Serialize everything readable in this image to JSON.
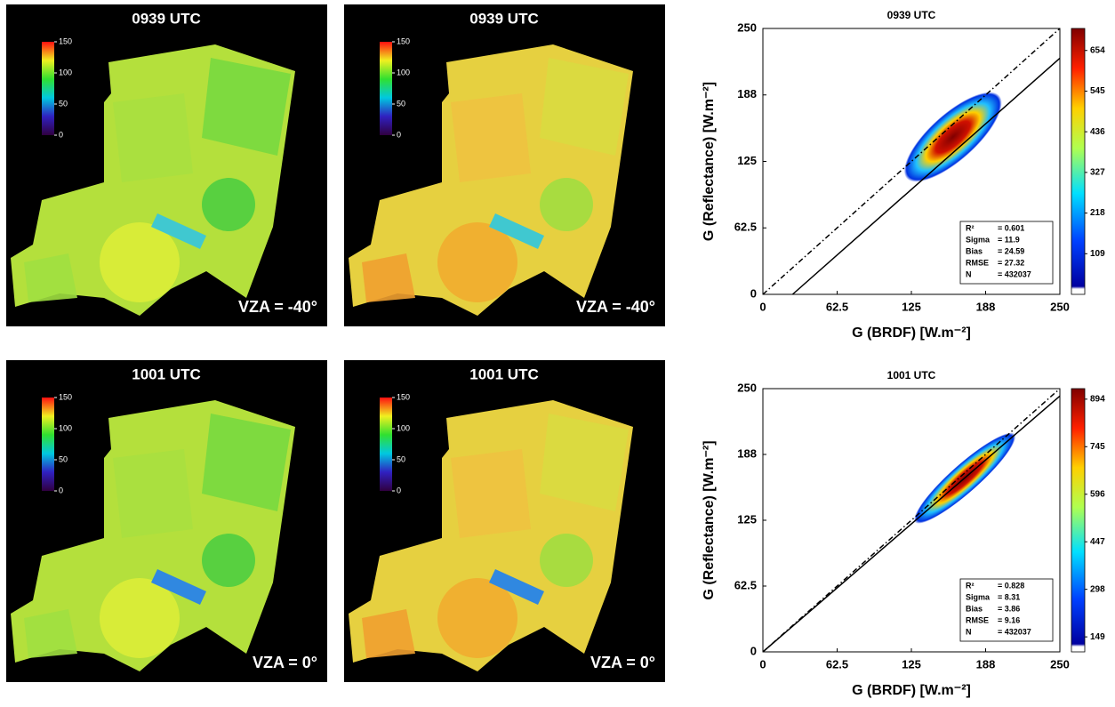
{
  "maps": [
    {
      "title": "0939 UTC",
      "annotation": "VZA = -40°",
      "colorbar": {
        "range": [
          0,
          150
        ],
        "ticks": [
          0,
          50,
          100,
          150
        ]
      }
    },
    {
      "title": "0939 UTC",
      "annotation": "VZA = -40°",
      "colorbar": {
        "range": [
          0,
          150
        ],
        "ticks": [
          0,
          50,
          100,
          150
        ]
      }
    },
    {
      "title": "1001 UTC",
      "annotation": "VZA = 0°",
      "colorbar": {
        "range": [
          0,
          150
        ],
        "ticks": [
          0,
          50,
          100,
          150
        ]
      }
    },
    {
      "title": "1001 UTC",
      "annotation": "VZA = 0°",
      "colorbar": {
        "range": [
          0,
          150
        ],
        "ticks": [
          0,
          50,
          100,
          150
        ]
      }
    }
  ],
  "chart_data": [
    {
      "type": "density",
      "title": "0939 UTC",
      "x_label": "G (BRDF) [W.m⁻²]",
      "y_label": "G (Reflectance) [W.m⁻²]",
      "xlim": [
        0,
        250
      ],
      "ylim": [
        0,
        250
      ],
      "xticks": [
        0,
        62.5,
        125,
        {
          "value": 187.5,
          "label": "188"
        },
        250
      ],
      "yticks": [
        0,
        62.5,
        125,
        {
          "value": 187.5,
          "label": "188"
        },
        250
      ],
      "lines": [
        {
          "style": "dash-dot",
          "x": [
            0,
            250
          ],
          "y": [
            0,
            250
          ]
        },
        {
          "style": "solid",
          "x": [
            25,
            250
          ],
          "y": [
            0,
            222
          ]
        }
      ],
      "clim": [
        0,
        713
      ],
      "cticks": [
        109,
        218,
        327,
        436,
        545,
        654
      ],
      "stats": [
        [
          "R²",
          "= 0.601"
        ],
        [
          "Sigma",
          "= 11.9"
        ],
        [
          "Bias",
          "= 24.59"
        ],
        [
          "RMSE",
          "= 27.32"
        ],
        [
          "N",
          "= 432037"
        ]
      ]
    },
    {
      "type": "density",
      "title": "1001 UTC",
      "x_label": "G (BRDF) [W.m⁻²]",
      "y_label": "G (Reflectance) [W.m⁻²]",
      "xlim": [
        0,
        250
      ],
      "ylim": [
        0,
        250
      ],
      "xticks": [
        0,
        62.5,
        125,
        {
          "value": 187.5,
          "label": "188"
        },
        250
      ],
      "yticks": [
        0,
        62.5,
        125,
        {
          "value": 187.5,
          "label": "188"
        },
        250
      ],
      "lines": [
        {
          "style": "dash-dot",
          "x": [
            0,
            250
          ],
          "y": [
            0,
            250
          ]
        },
        {
          "style": "solid",
          "x": [
            0,
            250
          ],
          "y": [
            0,
            243
          ]
        }
      ],
      "clim": [
        102,
        927
      ],
      "cticks": [
        149,
        298,
        447,
        596,
        745,
        894
      ],
      "stats": [
        [
          "R²",
          "= 0.828"
        ],
        [
          "Sigma",
          "= 8.31"
        ],
        [
          "Bias",
          "= 3.86"
        ],
        [
          "RMSE",
          "= 9.16"
        ],
        [
          "N",
          "= 432037"
        ]
      ]
    }
  ]
}
